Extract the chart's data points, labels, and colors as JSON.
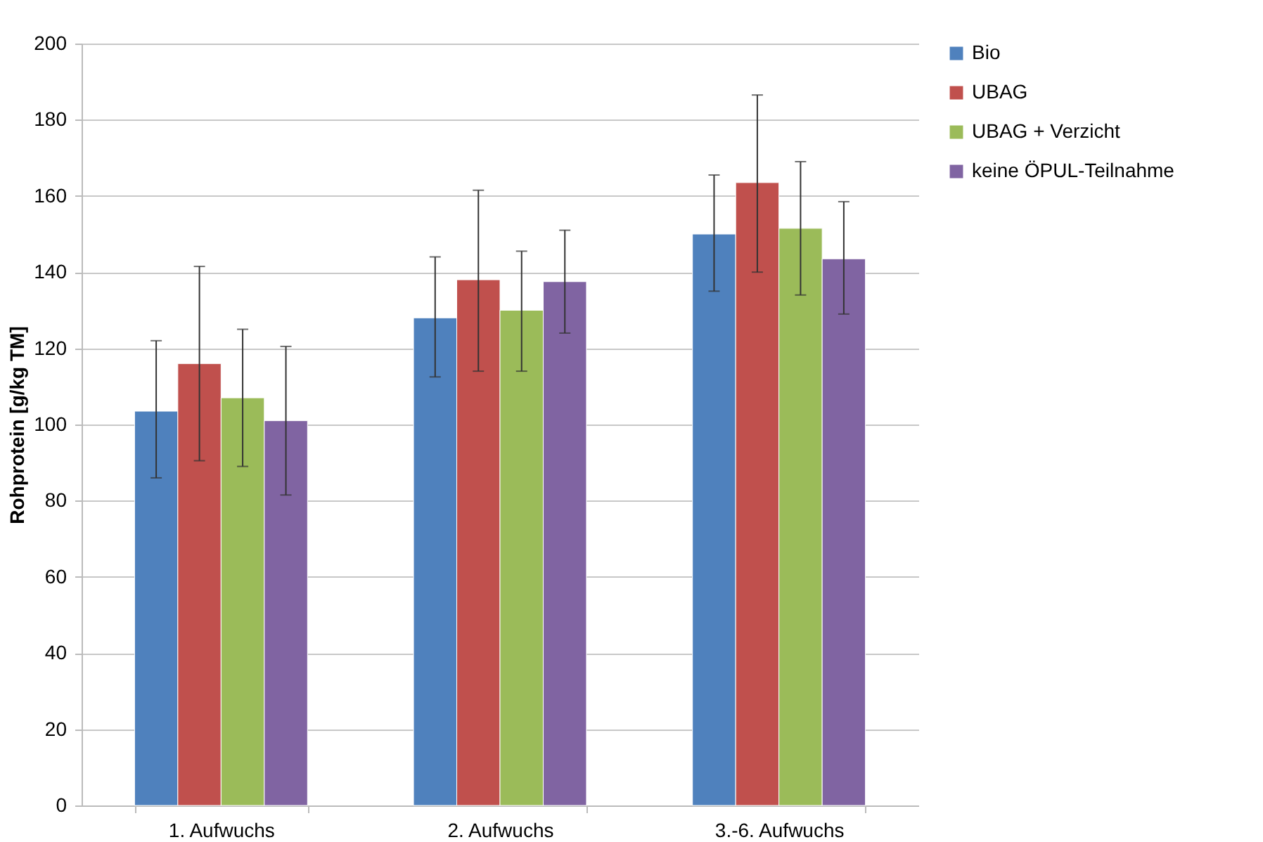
{
  "chart_data": {
    "type": "bar",
    "ylabel": "Rohprotein [g/kg TM]",
    "categories": [
      "1. Aufwuchs",
      "2. Aufwuchs",
      "3.-6. Aufwuchs"
    ],
    "series": [
      {
        "name": "Bio",
        "color": "#4f81bd",
        "values": [
          103.5,
          128,
          150
        ],
        "errors": [
          [
            86,
            122
          ],
          [
            112.5,
            144
          ],
          [
            135,
            165.5
          ]
        ]
      },
      {
        "name": "UBAG",
        "color": "#c0504d",
        "values": [
          116,
          138,
          163.5
        ],
        "errors": [
          [
            90.5,
            141.5
          ],
          [
            114,
            161.5
          ],
          [
            140,
            186.5
          ]
        ]
      },
      {
        "name": "UBAG + Verzicht",
        "color": "#9bbb59",
        "values": [
          107,
          130,
          151.5
        ],
        "errors": [
          [
            89,
            125
          ],
          [
            114,
            145.5
          ],
          [
            134,
            169
          ]
        ]
      },
      {
        "name": "keine ÖPUL-Teilnahme",
        "color": "#8064a2",
        "values": [
          101,
          137.5,
          143.5
        ],
        "errors": [
          [
            81.5,
            120.5
          ],
          [
            124,
            151
          ],
          [
            129,
            158.5
          ]
        ]
      }
    ],
    "ylim": [
      0,
      200
    ],
    "yticks": [
      0,
      20,
      40,
      60,
      80,
      100,
      120,
      140,
      160,
      180,
      200
    ],
    "grid": "y",
    "legend": "right"
  }
}
